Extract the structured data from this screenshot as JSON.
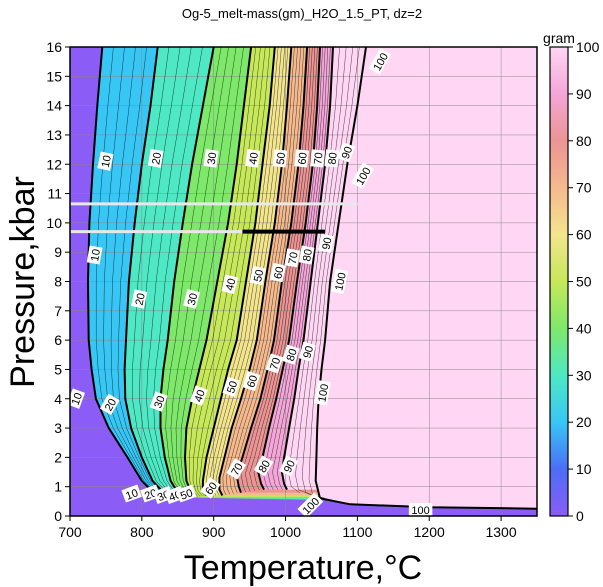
{
  "chart_data": {
    "type": "heatmap",
    "title": "Og-5_melt-mass(gm)_H2O_1.5_PT, dz=2",
    "xlabel": "Temperature,°C",
    "ylabel": "Pressure,kbar",
    "xlim": [
      700,
      1350
    ],
    "ylim": [
      0,
      16
    ],
    "x_ticks": [
      "700",
      "800",
      "900",
      "1000",
      "1100",
      "1200",
      "1300"
    ],
    "y_ticks": [
      "0",
      "1",
      "2",
      "3",
      "4",
      "5",
      "6",
      "7",
      "8",
      "9",
      "10",
      "11",
      "12",
      "13",
      "14",
      "15",
      "16"
    ],
    "grid": true,
    "colorbar": {
      "label": "gram",
      "range": [
        0,
        100
      ],
      "ticks": [
        "0",
        "10",
        "20",
        "30",
        "40",
        "50",
        "60",
        "70",
        "80",
        "90",
        "100"
      ],
      "placement": "right",
      "colors": [
        "#8b5cf6",
        "#4c6ef5",
        "#38c6f5",
        "#4ee8c4",
        "#7ee86a",
        "#c6e85a",
        "#f3e58e",
        "#f5b98e",
        "#ec9494",
        "#f4a6d8",
        "#ffd6f4"
      ]
    },
    "contour_levels": [
      10,
      20,
      30,
      40,
      50,
      60,
      70,
      80,
      90,
      100
    ],
    "contours": [
      {
        "level": 10,
        "points": [
          [
            745,
            16
          ],
          [
            738,
            14
          ],
          [
            732,
            12
          ],
          [
            727,
            10
          ],
          [
            725,
            8
          ],
          [
            726,
            6
          ],
          [
            730,
            5
          ],
          [
            736,
            4
          ],
          [
            754,
            3
          ],
          [
            780,
            2
          ],
          [
            800,
            1.2
          ],
          [
            820,
            0.7
          ],
          [
            845,
            0.5
          ]
        ]
      },
      {
        "level": 20,
        "points": [
          [
            822,
            16
          ],
          [
            812,
            14
          ],
          [
            800,
            12
          ],
          [
            790,
            10
          ],
          [
            782,
            8
          ],
          [
            778,
            6
          ],
          [
            776,
            5
          ],
          [
            777,
            4
          ],
          [
            785,
            3
          ],
          [
            800,
            2
          ],
          [
            815,
            1.2
          ],
          [
            832,
            0.75
          ],
          [
            850,
            0.55
          ]
        ]
      },
      {
        "level": 30,
        "points": [
          [
            900,
            16
          ],
          [
            885,
            14
          ],
          [
            870,
            12
          ],
          [
            857,
            10
          ],
          [
            845,
            8
          ],
          [
            836,
            6
          ],
          [
            830,
            5
          ],
          [
            826,
            4
          ],
          [
            826,
            3
          ],
          [
            832,
            2
          ],
          [
            840,
            1.2
          ],
          [
            850,
            0.8
          ],
          [
            860,
            0.6
          ]
        ]
      },
      {
        "level": 40,
        "points": [
          [
            952,
            16
          ],
          [
            942,
            14
          ],
          [
            932,
            12
          ],
          [
            920,
            10
          ],
          [
            905,
            8
          ],
          [
            890,
            6
          ],
          [
            880,
            5
          ],
          [
            870,
            4
          ],
          [
            862,
            3
          ],
          [
            860,
            2
          ],
          [
            862,
            1.2
          ],
          [
            868,
            0.85
          ],
          [
            875,
            0.65
          ]
        ]
      },
      {
        "level": 50,
        "points": [
          [
            985,
            16
          ],
          [
            978,
            14
          ],
          [
            968,
            12
          ],
          [
            958,
            10
          ],
          [
            945,
            8
          ],
          [
            932,
            6
          ],
          [
            920,
            5
          ],
          [
            910,
            4
          ],
          [
            900,
            3
          ],
          [
            890,
            2
          ],
          [
            885,
            1.2
          ],
          [
            885,
            0.9
          ],
          [
            890,
            0.7
          ]
        ]
      },
      {
        "level": 60,
        "points": [
          [
            1008,
            16
          ],
          [
            1002,
            14
          ],
          [
            995,
            12
          ],
          [
            985,
            10
          ],
          [
            972,
            8
          ],
          [
            960,
            6
          ],
          [
            950,
            5
          ],
          [
            938,
            4
          ],
          [
            925,
            3
          ],
          [
            915,
            2
          ],
          [
            908,
            1.3
          ],
          [
            908,
            0.9
          ],
          [
            912,
            0.7
          ]
        ]
      },
      {
        "level": 70,
        "points": [
          [
            1030,
            16
          ],
          [
            1025,
            14
          ],
          [
            1018,
            12
          ],
          [
            1008,
            10
          ],
          [
            995,
            8
          ],
          [
            984,
            6
          ],
          [
            975,
            5
          ],
          [
            965,
            4
          ],
          [
            952,
            3
          ],
          [
            940,
            2
          ],
          [
            932,
            1.4
          ],
          [
            935,
            1.0
          ],
          [
            938,
            0.8
          ]
        ]
      },
      {
        "level": 80,
        "points": [
          [
            1048,
            16
          ],
          [
            1044,
            14
          ],
          [
            1038,
            12
          ],
          [
            1028,
            10
          ],
          [
            1016,
            8
          ],
          [
            1005,
            6
          ],
          [
            996,
            5
          ],
          [
            987,
            4
          ],
          [
            977,
            3
          ],
          [
            968,
            2
          ],
          [
            962,
            1.5
          ],
          [
            966,
            1.1
          ],
          [
            970,
            0.9
          ]
        ]
      },
      {
        "level": 90,
        "points": [
          [
            1066,
            16
          ],
          [
            1062,
            14
          ],
          [
            1055,
            12
          ],
          [
            1045,
            10
          ],
          [
            1035,
            8
          ],
          [
            1025,
            6
          ],
          [
            1018,
            5
          ],
          [
            1012,
            4
          ],
          [
            1005,
            3
          ],
          [
            998,
            2
          ],
          [
            995,
            1.5
          ],
          [
            998,
            1.1
          ],
          [
            1002,
            0.9
          ]
        ]
      },
      {
        "level": 100,
        "points": [
          [
            1112,
            16
          ],
          [
            1100,
            14
          ],
          [
            1086,
            12
          ],
          [
            1074,
            10
          ],
          [
            1062,
            8
          ],
          [
            1055,
            6
          ],
          [
            1050,
            5
          ],
          [
            1046,
            4
          ],
          [
            1044,
            3
          ],
          [
            1043,
            2
          ],
          [
            1042,
            1.2
          ],
          [
            1048,
            0.6
          ],
          [
            1090,
            0.4
          ],
          [
            1200,
            0.3
          ],
          [
            1350,
            0.25
          ]
        ]
      }
    ],
    "contour_labels": [
      {
        "text": "10",
        "x": 750,
        "y": 12.1,
        "rotate": -78
      },
      {
        "text": "20",
        "x": 820,
        "y": 12.2,
        "rotate": -80
      },
      {
        "text": "30",
        "x": 897,
        "y": 12.2,
        "rotate": -82
      },
      {
        "text": "40",
        "x": 955,
        "y": 12.2,
        "rotate": -82
      },
      {
        "text": "50",
        "x": 993,
        "y": 12.2,
        "rotate": -84
      },
      {
        "text": "60",
        "x": 1023,
        "y": 12.2,
        "rotate": -84
      },
      {
        "text": "70",
        "x": 1045,
        "y": 12.2,
        "rotate": -84
      },
      {
        "text": "80",
        "x": 1065,
        "y": 12.2,
        "rotate": -84
      },
      {
        "text": "90",
        "x": 1085,
        "y": 12.4,
        "rotate": -70
      },
      {
        "text": "100",
        "x": 1132,
        "y": 15.5,
        "rotate": -60
      },
      {
        "text": "100",
        "x": 1108,
        "y": 11.6,
        "rotate": -60
      },
      {
        "text": "10",
        "x": 735,
        "y": 8.9,
        "rotate": -80
      },
      {
        "text": "20",
        "x": 797,
        "y": 7.4,
        "rotate": -78
      },
      {
        "text": "30",
        "x": 870,
        "y": 7.4,
        "rotate": -76
      },
      {
        "text": "40",
        "x": 923,
        "y": 7.9,
        "rotate": -76
      },
      {
        "text": "50",
        "x": 962,
        "y": 8.2,
        "rotate": -78
      },
      {
        "text": "60",
        "x": 990,
        "y": 8.3,
        "rotate": -78
      },
      {
        "text": "70",
        "x": 1010,
        "y": 8.8,
        "rotate": -80
      },
      {
        "text": "80",
        "x": 1030,
        "y": 8.9,
        "rotate": -80
      },
      {
        "text": "90",
        "x": 1057,
        "y": 9.3,
        "rotate": -80
      },
      {
        "text": "100",
        "x": 1076,
        "y": 8.0,
        "rotate": -78
      },
      {
        "text": "50",
        "x": 925,
        "y": 4.4,
        "rotate": -72
      },
      {
        "text": "60",
        "x": 953,
        "y": 4.6,
        "rotate": -72
      },
      {
        "text": "70",
        "x": 985,
        "y": 5.2,
        "rotate": -72
      },
      {
        "text": "80",
        "x": 1008,
        "y": 5.5,
        "rotate": -72
      },
      {
        "text": "90",
        "x": 1031,
        "y": 5.6,
        "rotate": -74
      },
      {
        "text": "100",
        "x": 1052,
        "y": 4.2,
        "rotate": -80
      },
      {
        "text": "10",
        "x": 709,
        "y": 4.0,
        "rotate": -70
      },
      {
        "text": "20",
        "x": 756,
        "y": 3.8,
        "rotate": -60
      },
      {
        "text": "30",
        "x": 824,
        "y": 3.9,
        "rotate": -70
      },
      {
        "text": "40",
        "x": 880,
        "y": 4.1,
        "rotate": -70
      },
      {
        "text": "70",
        "x": 932,
        "y": 1.6,
        "rotate": -60
      },
      {
        "text": "80",
        "x": 970,
        "y": 1.7,
        "rotate": -60
      },
      {
        "text": "90",
        "x": 1005,
        "y": 1.7,
        "rotate": -65
      },
      {
        "text": "100",
        "x": 1035,
        "y": 0.35,
        "rotate": -45
      },
      {
        "text": "60",
        "x": 896,
        "y": 0.95,
        "rotate": -55
      },
      {
        "text": "10",
        "x": 786,
        "y": 0.75,
        "rotate": -20
      },
      {
        "text": "20",
        "x": 812,
        "y": 0.75,
        "rotate": -20
      },
      {
        "text": "30",
        "x": 830,
        "y": 0.7,
        "rotate": -20
      },
      {
        "text": "40",
        "x": 846,
        "y": 0.7,
        "rotate": -20
      },
      {
        "text": "50",
        "x": 862,
        "y": 0.75,
        "rotate": -20
      },
      {
        "text": "100",
        "x": 1188,
        "y": 0.2,
        "rotate": 0
      }
    ],
    "annotation_lines": [
      {
        "color": "#e8e8e8",
        "y": 10.65,
        "x": [
          700,
          1100
        ]
      },
      {
        "color": "#e8e8e8",
        "y": 9.7,
        "x": [
          700,
          940
        ]
      },
      {
        "color": "#000000",
        "y": 9.7,
        "x": [
          940,
          1055
        ]
      }
    ]
  }
}
